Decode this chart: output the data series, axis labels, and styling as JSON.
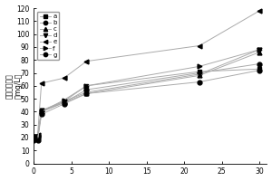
{
  "x": [
    0,
    0.5,
    1,
    4,
    7,
    22,
    30
  ],
  "series": {
    "a": [
      21,
      21,
      40,
      48,
      60,
      71,
      73
    ],
    "b": [
      21,
      21,
      40,
      47,
      57,
      70,
      77
    ],
    "c": [
      21,
      21,
      40,
      47,
      54,
      68,
      86
    ],
    "d": [
      21,
      21,
      41,
      48,
      55,
      69,
      88
    ],
    "e": [
      21,
      22,
      62,
      66,
      79,
      91,
      118
    ],
    "f": [
      19,
      19,
      40,
      49,
      60,
      75,
      88
    ],
    "g": [
      18,
      18,
      38,
      46,
      54,
      63,
      72
    ]
  },
  "markers": {
    "a": "s",
    "b": "o",
    "c": "^",
    "d": "v",
    "e": "<",
    "f": ">",
    "g": "o"
  },
  "ylabel_top": "溶解性总固体",
  "ylabel_bottom": "（mg/L）",
  "ylim": [
    0,
    120
  ],
  "xlim": [
    0,
    31
  ],
  "xticks": [
    0,
    5,
    10,
    15,
    20,
    25,
    30
  ],
  "yticks": [
    0,
    10,
    20,
    30,
    40,
    50,
    60,
    70,
    80,
    90,
    100,
    110,
    120
  ],
  "legend_labels": [
    "a",
    "b",
    "c",
    "d",
    "e",
    "f",
    "g"
  ],
  "line_color": "#aaaaaa",
  "marker_color": "black",
  "figsize": [
    3.0,
    2.0
  ],
  "dpi": 100
}
